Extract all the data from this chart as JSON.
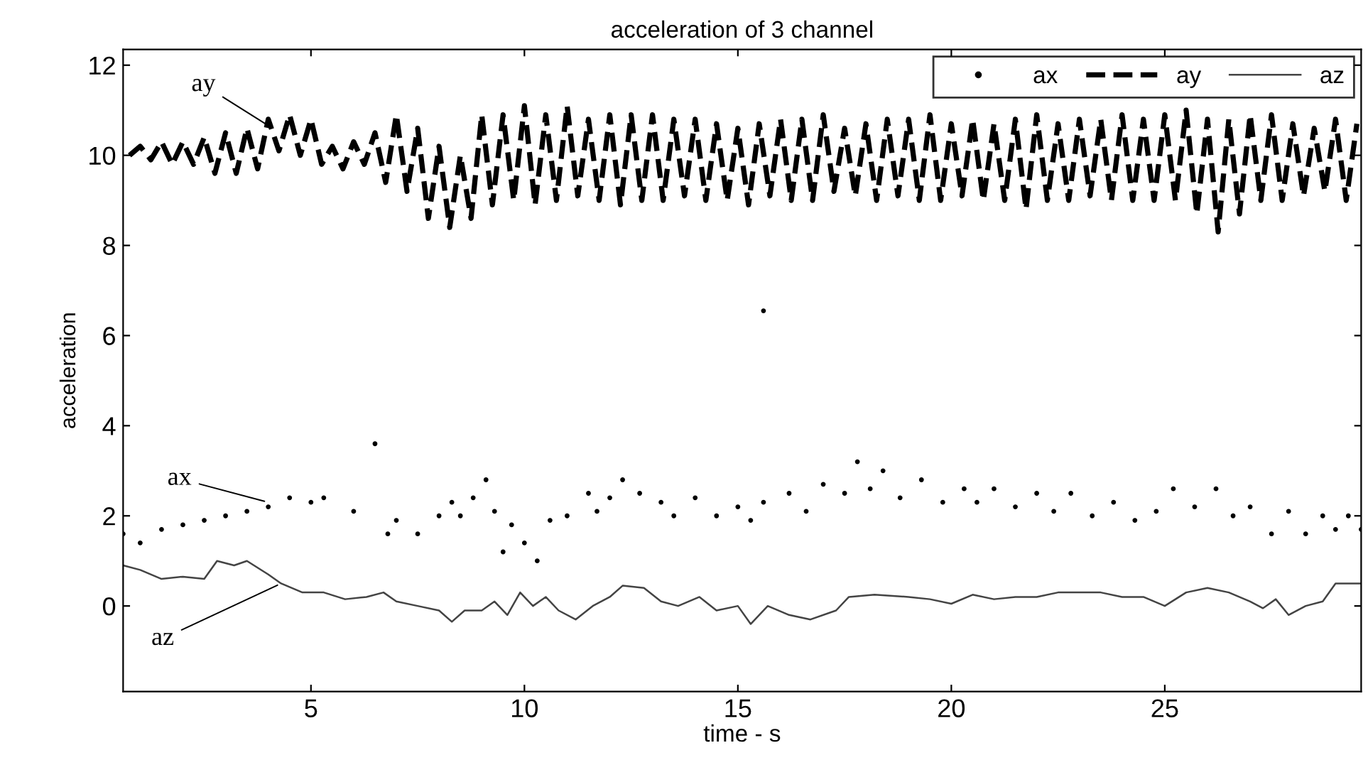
{
  "chart_data": {
    "type": "line",
    "title": "acceleration of 3 channel",
    "xlabel": "time - s",
    "ylabel": "acceleration",
    "xlim": [
      0.6,
      29.6
    ],
    "ylim": [
      -1.9,
      12.35
    ],
    "xticks": [
      5,
      10,
      15,
      20,
      25
    ],
    "yticks": [
      0,
      2,
      4,
      6,
      8,
      10,
      12
    ],
    "grid": false,
    "legend": "top right",
    "annotations": [
      {
        "text": "ay",
        "x": 4.1,
        "y": 10.6
      },
      {
        "text": "ax",
        "x": 4.0,
        "y": 2.3
      },
      {
        "text": "az",
        "x": 4.3,
        "y": 0.5
      }
    ],
    "series": [
      {
        "name": "ax",
        "type": "scatter",
        "marker": "circle",
        "color": "#000000",
        "x": [
          0.6,
          1.0,
          1.5,
          2.0,
          2.5,
          3.0,
          3.5,
          4.0,
          4.5,
          5.0,
          5.3,
          6.0,
          6.5,
          6.8,
          7.0,
          7.5,
          8.0,
          8.3,
          8.5,
          8.8,
          9.1,
          9.3,
          9.5,
          9.7,
          10.0,
          10.3,
          10.6,
          11.0,
          11.5,
          11.7,
          12.0,
          12.3,
          12.7,
          13.2,
          13.5,
          14.0,
          14.5,
          15.0,
          15.3,
          15.6,
          15.6,
          16.2,
          16.6,
          17.0,
          17.5,
          17.8,
          18.1,
          18.4,
          18.8,
          19.3,
          19.8,
          20.3,
          20.6,
          21.0,
          21.5,
          22.0,
          22.4,
          22.8,
          23.3,
          23.8,
          24.3,
          24.8,
          25.2,
          25.7,
          26.2,
          26.6,
          27.0,
          27.5,
          27.9,
          28.3,
          28.7,
          29.0,
          29.3,
          29.6
        ],
        "values": [
          1.6,
          1.4,
          1.7,
          1.8,
          1.9,
          2.0,
          2.1,
          2.2,
          2.4,
          2.3,
          2.4,
          2.1,
          3.6,
          1.6,
          1.9,
          1.6,
          2.0,
          2.3,
          2.0,
          2.4,
          2.8,
          2.1,
          1.2,
          1.8,
          1.4,
          1.0,
          1.9,
          2.0,
          2.5,
          2.1,
          2.4,
          2.8,
          2.5,
          2.3,
          2.0,
          2.4,
          2.0,
          2.2,
          1.9,
          2.3,
          6.55,
          2.5,
          2.1,
          2.7,
          2.5,
          3.2,
          2.6,
          3.0,
          2.4,
          2.8,
          2.3,
          2.6,
          2.3,
          2.6,
          2.2,
          2.5,
          2.1,
          2.5,
          2.0,
          2.3,
          1.9,
          2.1,
          2.6,
          2.2,
          2.6,
          2.0,
          2.2,
          1.6,
          2.1,
          1.6,
          2.0,
          1.7,
          2.0,
          1.7
        ]
      },
      {
        "name": "ay",
        "line_style": "dashed",
        "color": "#000000",
        "x": [
          0.75,
          1.0,
          1.25,
          1.5,
          1.75,
          2.0,
          2.25,
          2.5,
          2.75,
          3.0,
          3.25,
          3.5,
          3.75,
          4.0,
          4.25,
          4.5,
          4.75,
          5.0,
          5.25,
          5.5,
          5.75,
          6.0,
          6.25,
          6.5,
          6.75,
          7.0,
          7.25,
          7.5,
          7.75,
          8.0,
          8.25,
          8.5,
          8.75,
          9.0,
          9.25,
          9.5,
          9.75,
          10.0,
          10.25,
          10.5,
          10.75,
          11.0,
          11.25,
          11.5,
          11.75,
          12.0,
          12.25,
          12.5,
          12.75,
          13.0,
          13.25,
          13.5,
          13.75,
          14.0,
          14.25,
          14.5,
          14.75,
          15.0,
          15.25,
          15.5,
          15.75,
          16.0,
          16.25,
          16.5,
          16.75,
          17.0,
          17.25,
          17.5,
          17.75,
          18.0,
          18.25,
          18.5,
          18.75,
          19.0,
          19.25,
          19.5,
          19.75,
          20.0,
          20.25,
          20.5,
          20.75,
          21.0,
          21.25,
          21.5,
          21.75,
          22.0,
          22.25,
          22.5,
          22.75,
          23.0,
          23.25,
          23.5,
          23.75,
          24.0,
          24.25,
          24.5,
          24.75,
          25.0,
          25.25,
          25.5,
          25.75,
          26.0,
          26.25,
          26.5,
          26.75,
          27.0,
          27.25,
          27.5,
          27.75,
          28.0,
          28.25,
          28.5,
          28.75,
          29.0,
          29.25,
          29.5
        ],
        "values": [
          10.0,
          10.2,
          9.9,
          10.3,
          9.8,
          10.3,
          9.8,
          10.4,
          9.6,
          10.5,
          9.6,
          10.6,
          9.7,
          10.8,
          10.1,
          10.9,
          10.0,
          10.8,
          9.8,
          10.2,
          9.7,
          10.3,
          9.8,
          10.5,
          9.4,
          10.9,
          9.2,
          10.6,
          8.6,
          10.2,
          8.4,
          10.0,
          8.6,
          10.9,
          8.9,
          10.9,
          9.0,
          11.1,
          8.9,
          10.9,
          9.0,
          11.1,
          9.1,
          10.8,
          9.0,
          10.9,
          8.9,
          10.9,
          9.0,
          10.9,
          9.0,
          10.8,
          9.1,
          10.8,
          9.0,
          10.7,
          9.0,
          10.6,
          8.9,
          10.7,
          9.1,
          10.8,
          9.0,
          10.8,
          9.0,
          10.9,
          9.2,
          10.6,
          9.1,
          10.7,
          9.0,
          10.8,
          9.1,
          10.8,
          9.0,
          10.9,
          9.0,
          10.7,
          9.1,
          10.8,
          9.0,
          10.7,
          9.0,
          10.8,
          8.8,
          10.9,
          9.0,
          10.7,
          9.0,
          10.8,
          9.1,
          10.8,
          9.0,
          10.9,
          9.0,
          10.8,
          9.0,
          10.9,
          9.0,
          11.0,
          8.7,
          10.8,
          8.3,
          10.8,
          8.7,
          10.9,
          9.0,
          10.9,
          9.0,
          10.7,
          9.1,
          10.6,
          9.2,
          10.8,
          9.0,
          10.7
        ]
      },
      {
        "name": "az",
        "type": "line",
        "line_style": "solid",
        "color": "#444444",
        "x": [
          0.6,
          1.0,
          1.5,
          2.0,
          2.5,
          2.8,
          3.2,
          3.5,
          4.0,
          4.3,
          4.8,
          5.3,
          5.8,
          6.3,
          6.7,
          7.0,
          7.5,
          8.0,
          8.3,
          8.6,
          9.0,
          9.3,
          9.6,
          9.9,
          10.2,
          10.5,
          10.8,
          11.2,
          11.6,
          12.0,
          12.3,
          12.8,
          13.2,
          13.6,
          14.1,
          14.5,
          15.0,
          15.3,
          15.7,
          16.2,
          16.7,
          17.3,
          17.6,
          18.2,
          19.0,
          19.5,
          20.0,
          20.5,
          21.0,
          21.5,
          22.0,
          22.5,
          23.0,
          23.5,
          24.0,
          24.5,
          25.0,
          25.5,
          26.0,
          26.5,
          27.0,
          27.3,
          27.6,
          27.9,
          28.3,
          28.7,
          29.0,
          29.3,
          29.6
        ],
        "values": [
          0.9,
          0.8,
          0.6,
          0.65,
          0.6,
          1.0,
          0.9,
          1.0,
          0.7,
          0.5,
          0.3,
          0.3,
          0.15,
          0.2,
          0.3,
          0.1,
          0.0,
          -0.1,
          -0.35,
          -0.1,
          -0.1,
          0.1,
          -0.2,
          0.3,
          0.0,
          0.2,
          -0.1,
          -0.3,
          0.0,
          0.2,
          0.45,
          0.4,
          0.1,
          0.0,
          0.2,
          -0.1,
          0.0,
          -0.4,
          0.0,
          -0.2,
          -0.3,
          -0.1,
          0.2,
          0.25,
          0.2,
          0.15,
          0.05,
          0.25,
          0.15,
          0.2,
          0.2,
          0.3,
          0.3,
          0.3,
          0.2,
          0.2,
          0.0,
          0.3,
          0.4,
          0.3,
          0.1,
          -0.05,
          0.15,
          -0.2,
          0.0,
          0.1,
          0.5,
          0.5,
          0.5
        ]
      }
    ]
  }
}
